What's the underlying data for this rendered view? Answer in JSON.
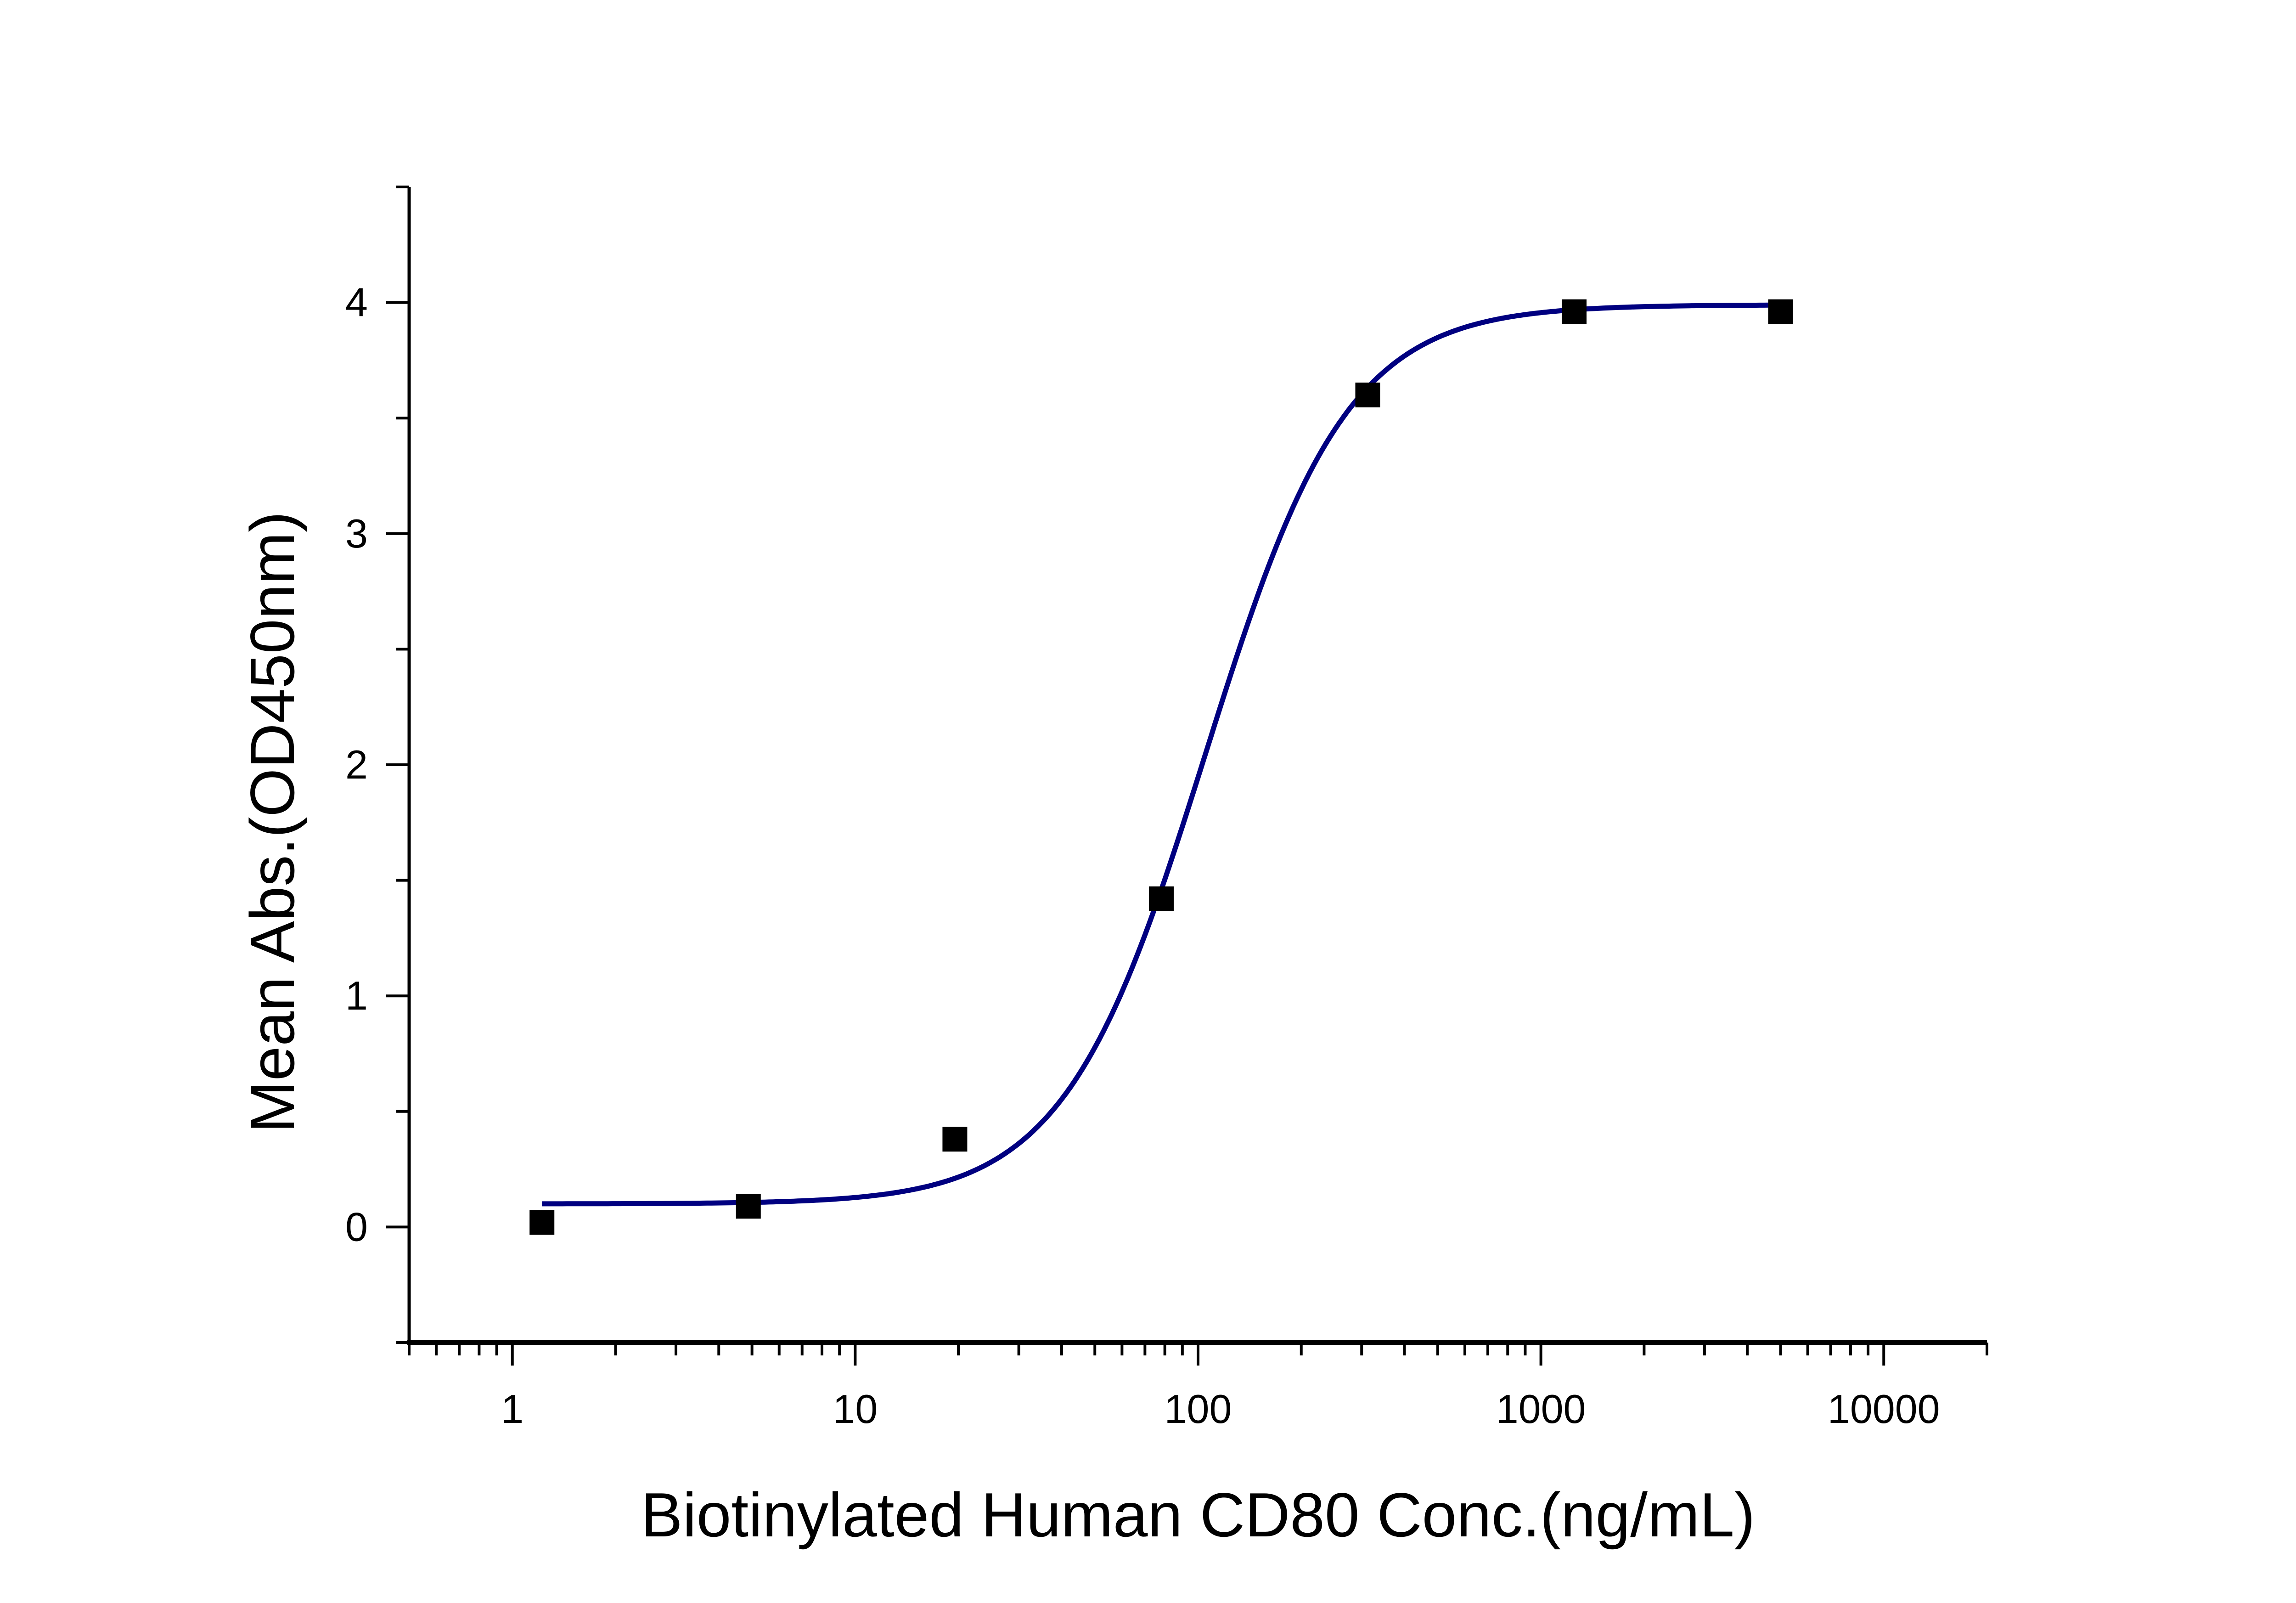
{
  "chart_data": {
    "type": "scatter",
    "title": "",
    "xlabel": "Biotinylated Human CD80 Conc.(ng/mL)",
    "ylabel": "Mean Abs.(OD450nm)",
    "xscale": "log",
    "xlim": [
      0.5,
      20000
    ],
    "ylim": [
      -0.5,
      4.5
    ],
    "xticks": [
      1,
      10,
      100,
      1000,
      10000
    ],
    "xtick_labels": [
      "1",
      "10",
      "100",
      "1000",
      "10000"
    ],
    "yticks": [
      0,
      1,
      2,
      3,
      4
    ],
    "ytick_labels": [
      "0",
      "1",
      "2",
      "3",
      "4"
    ],
    "grid": false,
    "legend": "none",
    "series": [
      {
        "x": [
          1.22,
          4.88,
          19.53,
          78.13,
          312.5,
          1250,
          5000
        ],
        "y": [
          0.02,
          0.09,
          0.38,
          1.42,
          3.6,
          3.96,
          3.96
        ],
        "marker": "square",
        "color": "#000000"
      }
    ],
    "fit_curve": {
      "model": "4PL",
      "bottom": 0.1,
      "top": 3.99,
      "ec50": 105,
      "hill": 2.1,
      "x_range": [
        1.22,
        5000
      ],
      "color": "#000080"
    }
  }
}
